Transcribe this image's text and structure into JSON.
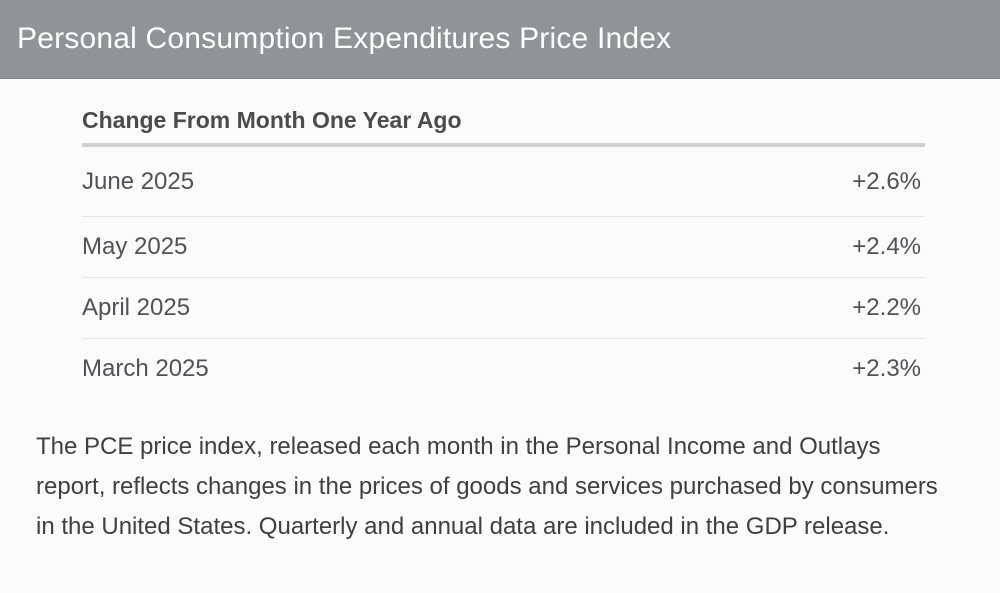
{
  "header": {
    "title": "Personal Consumption Expenditures Price Index"
  },
  "table": {
    "heading": "Change From Month One Year Ago",
    "rows": [
      {
        "label": "June 2025",
        "value": "+2.6%"
      },
      {
        "label": "May 2025",
        "value": "+2.4%"
      },
      {
        "label": "April 2025",
        "value": "+2.2%"
      },
      {
        "label": "March 2025",
        "value": "+2.3%"
      }
    ]
  },
  "description": "The PCE price index, released each month in the Personal Income and Outlays report, reflects changes in the prices of goods and services purchased by consumers in the United States. Quarterly and annual data are included in the GDP release.",
  "colors": {
    "header_bg": "#919496",
    "header_edge": "#84878a",
    "header_text": "#ffffff",
    "body_bg": "#fbfbfb",
    "heading_text": "#4b4b4b",
    "heading_underline": "#d2d2d2",
    "row_text": "#515257",
    "divider": "#e4e4e4",
    "paragraph_text": "#3e3f41"
  },
  "chart_data": {
    "type": "table",
    "title": "Personal Consumption Expenditures Price Index",
    "subtitle": "Change From Month One Year Ago",
    "categories": [
      "June 2025",
      "May 2025",
      "April 2025",
      "March 2025"
    ],
    "values": [
      2.6,
      2.4,
      2.2,
      2.3
    ],
    "value_labels": [
      "+2.6%",
      "+2.4%",
      "+2.2%",
      "+2.3%"
    ],
    "unit": "percent change year-over-year",
    "legend_position": "none",
    "grid": false
  }
}
